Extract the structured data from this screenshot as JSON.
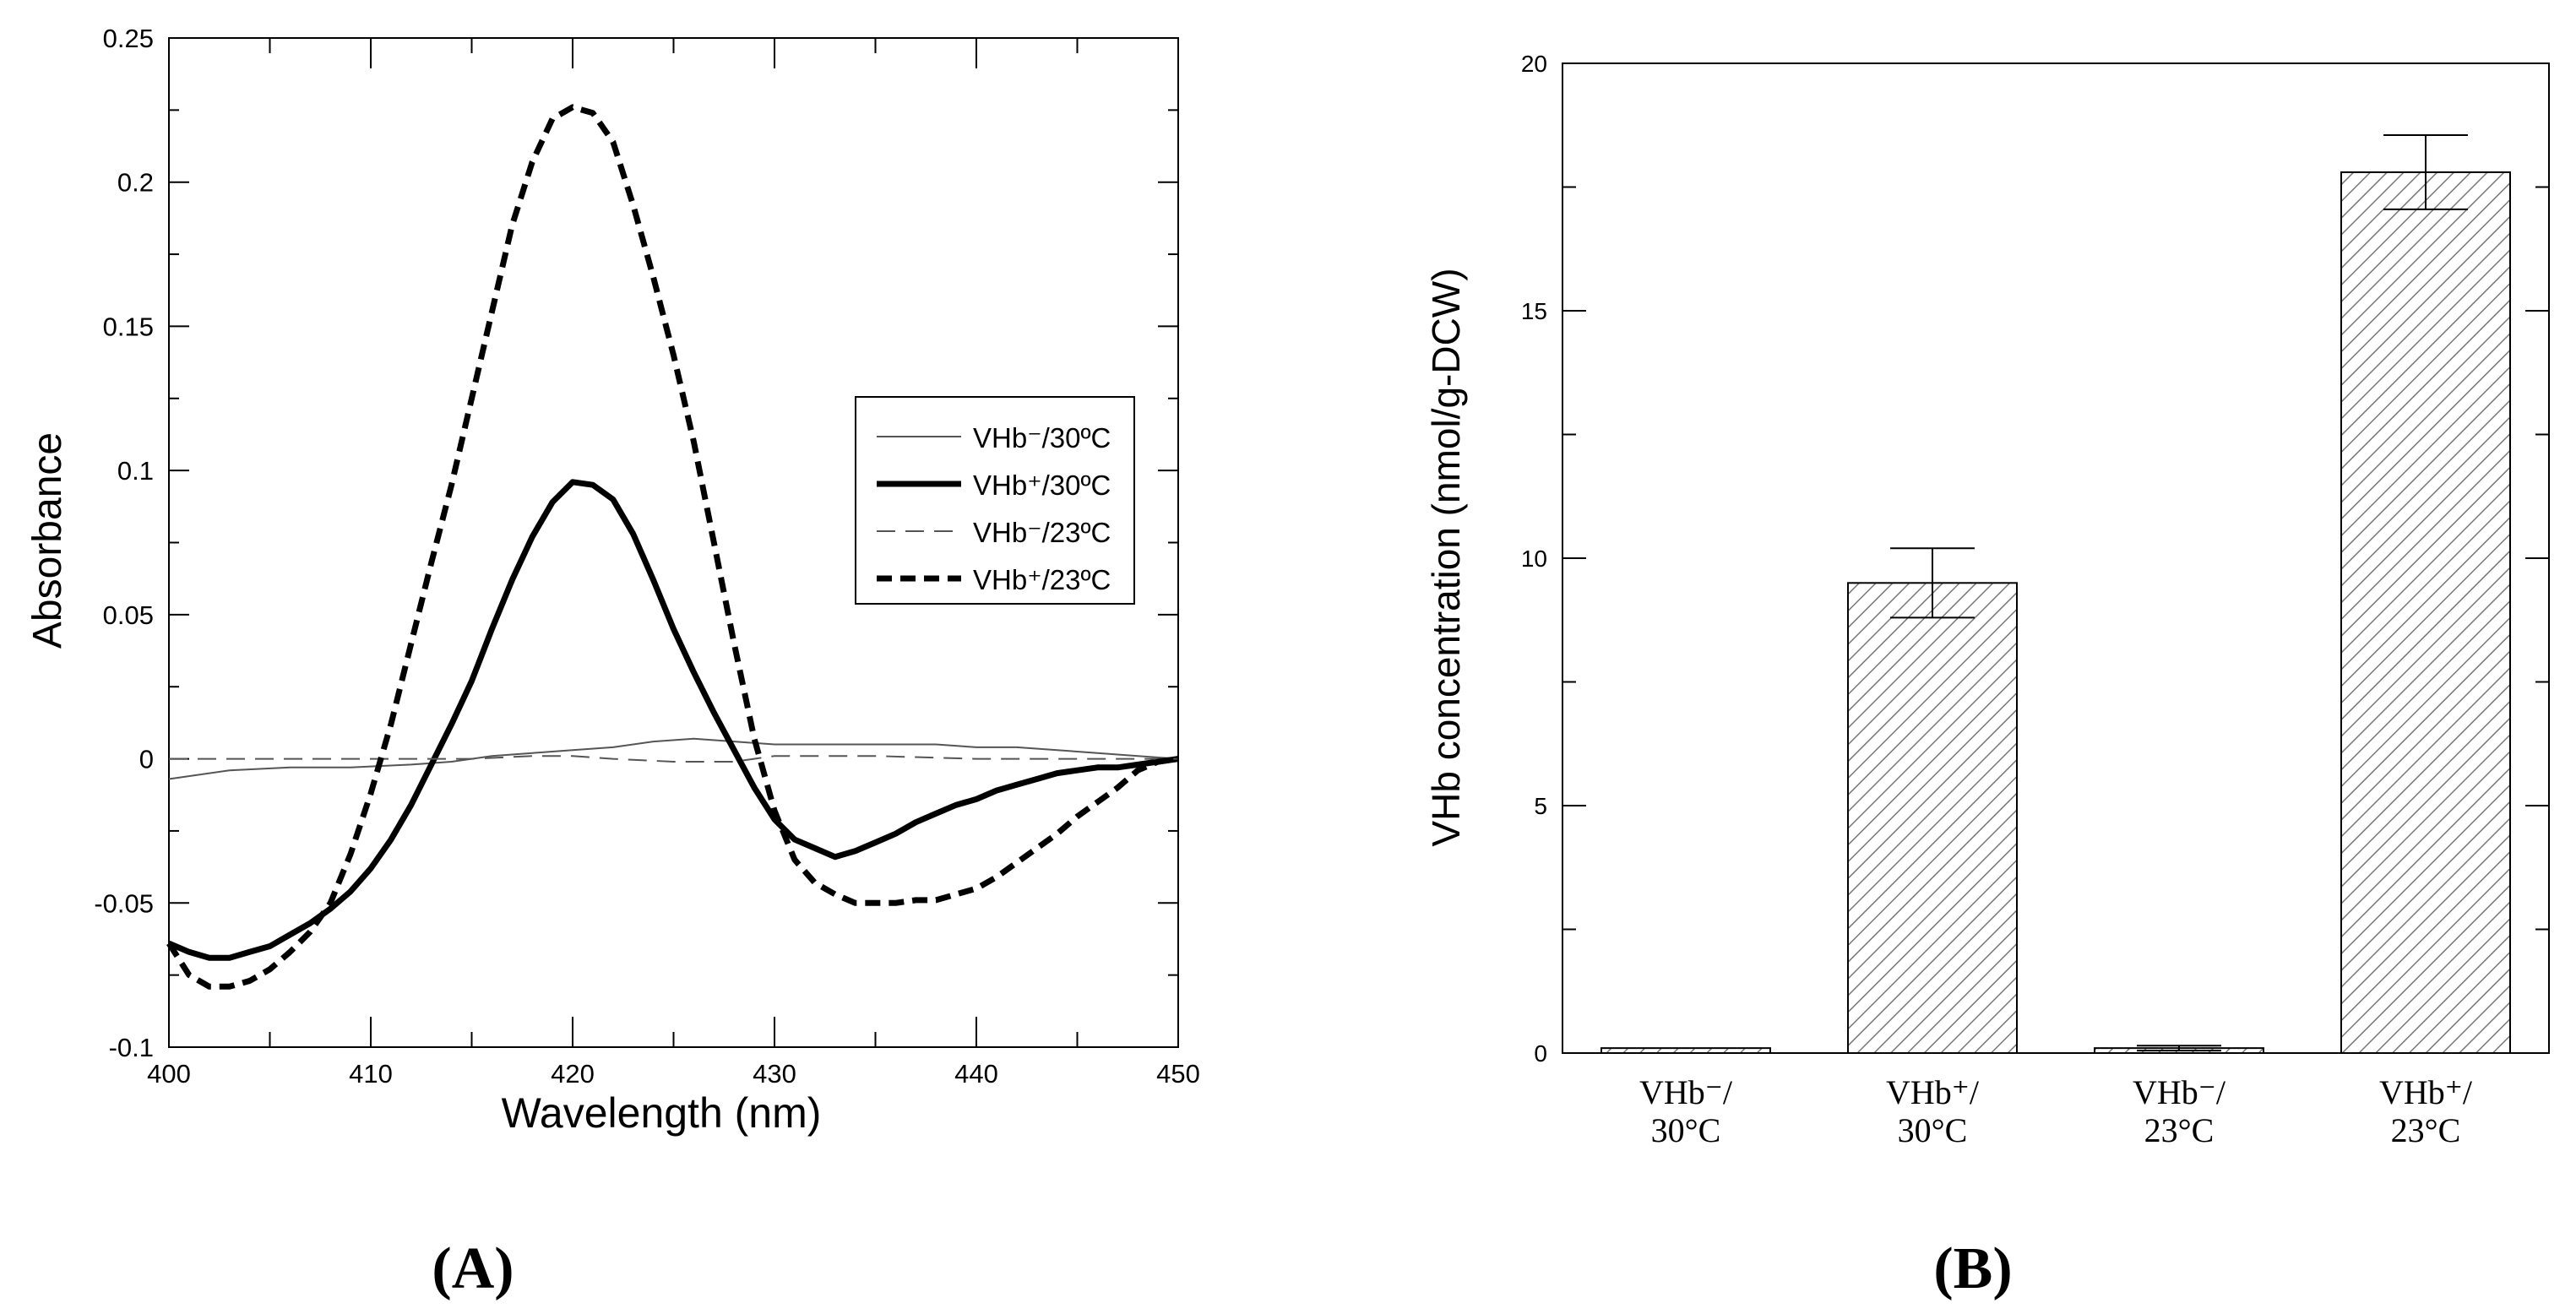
{
  "colors": {
    "axis": "#000000",
    "thin_line": "#555555",
    "bar_fill": "#ffffff",
    "hatch": "#777777"
  },
  "chart_data": [
    {
      "type": "line",
      "panel_label": "(A)",
      "xlabel": "Wavelength (nm)",
      "ylabel": "Absorbance",
      "xlim": [
        400,
        450
      ],
      "ylim": [
        -0.1,
        0.25
      ],
      "x_ticks": [
        "400",
        "410",
        "420",
        "430",
        "440",
        "450"
      ],
      "y_ticks": [
        "-0.1",
        "-0.05",
        "0",
        "0.05",
        "0.1",
        "0.15",
        "0.2",
        "0.25"
      ],
      "grid": false,
      "legend_position": "right",
      "series": [
        {
          "name": "VHb⁻/30ºC",
          "style": "thin-solid",
          "x": [
            400,
            403,
            406,
            409,
            412,
            414,
            416,
            418,
            420,
            422,
            424,
            426,
            428,
            430,
            432,
            434,
            436,
            438,
            440,
            442,
            444,
            446,
            448,
            450
          ],
          "y": [
            -0.007,
            -0.004,
            -0.003,
            -0.003,
            -0.002,
            -0.001,
            0.001,
            0.002,
            0.003,
            0.004,
            0.006,
            0.007,
            0.006,
            0.005,
            0.005,
            0.005,
            0.005,
            0.005,
            0.004,
            0.004,
            0.003,
            0.002,
            0.001,
            0.0
          ]
        },
        {
          "name": "VHb⁺/30ºC",
          "style": "thick-solid",
          "x": [
            400,
            401,
            402,
            403,
            404,
            405,
            406,
            407,
            408,
            409,
            410,
            411,
            412,
            413,
            414,
            415,
            416,
            417,
            418,
            419,
            420,
            421,
            422,
            423,
            424,
            425,
            426,
            427,
            428,
            429,
            430,
            431,
            432,
            433,
            434,
            435,
            436,
            437,
            438,
            439,
            440,
            441,
            442,
            443,
            444,
            445,
            446,
            447,
            448,
            449,
            450
          ],
          "y": [
            -0.064,
            -0.067,
            -0.069,
            -0.069,
            -0.067,
            -0.065,
            -0.061,
            -0.057,
            -0.052,
            -0.046,
            -0.038,
            -0.028,
            -0.016,
            -0.002,
            0.012,
            0.027,
            0.045,
            0.062,
            0.077,
            0.089,
            0.096,
            0.095,
            0.09,
            0.078,
            0.062,
            0.045,
            0.03,
            0.016,
            0.003,
            -0.01,
            -0.021,
            -0.028,
            -0.031,
            -0.034,
            -0.032,
            -0.029,
            -0.026,
            -0.022,
            -0.019,
            -0.016,
            -0.014,
            -0.011,
            -0.009,
            -0.007,
            -0.005,
            -0.004,
            -0.003,
            -0.003,
            -0.002,
            -0.001,
            0.0
          ]
        },
        {
          "name": "VHb⁻/23ºC",
          "style": "thin-dashed",
          "x": [
            400,
            405,
            410,
            415,
            418,
            420,
            422,
            425,
            428,
            430,
            435,
            440,
            445,
            450
          ],
          "y": [
            0.0,
            0.0,
            0.0,
            0.0,
            0.001,
            0.001,
            0.0,
            -0.001,
            -0.001,
            0.001,
            0.001,
            0.0,
            0.0,
            0.0
          ]
        },
        {
          "name": "VHb⁺/23ºC",
          "style": "thick-dashed",
          "x": [
            400,
            401,
            402,
            403,
            404,
            405,
            406,
            407,
            408,
            409,
            410,
            411,
            412,
            413,
            414,
            415,
            416,
            417,
            418,
            419,
            420,
            421,
            422,
            423,
            424,
            425,
            426,
            427,
            428,
            429,
            430,
            431,
            432,
            433,
            434,
            435,
            436,
            437,
            438,
            439,
            440,
            441,
            442,
            443,
            444,
            445,
            446,
            447,
            448,
            449,
            450
          ],
          "y": [
            -0.064,
            -0.075,
            -0.079,
            -0.079,
            -0.077,
            -0.073,
            -0.067,
            -0.06,
            -0.05,
            -0.033,
            -0.012,
            0.012,
            0.04,
            0.068,
            0.095,
            0.125,
            0.155,
            0.185,
            0.207,
            0.222,
            0.226,
            0.224,
            0.214,
            0.192,
            0.167,
            0.14,
            0.11,
            0.075,
            0.04,
            0.007,
            -0.018,
            -0.035,
            -0.043,
            -0.047,
            -0.05,
            -0.05,
            -0.05,
            -0.049,
            -0.049,
            -0.047,
            -0.045,
            -0.041,
            -0.036,
            -0.031,
            -0.026,
            -0.02,
            -0.015,
            -0.01,
            -0.004,
            -0.001,
            0.0
          ]
        }
      ]
    },
    {
      "type": "bar",
      "panel_label": "(B)",
      "xlabel": "",
      "ylabel": "VHb concentration (nmol/g-DCW)",
      "ylim": [
        0,
        20
      ],
      "y_ticks": [
        "0",
        "5",
        "10",
        "15",
        "20"
      ],
      "y_minor_step": 2.5,
      "grid": false,
      "bar_pattern": "diagonal-hatch",
      "categories": [
        {
          "top": "VHb⁻/",
          "bottom": "30°C"
        },
        {
          "top": "VHb⁺/",
          "bottom": "30°C"
        },
        {
          "top": "VHb⁻/",
          "bottom": "23°C"
        },
        {
          "top": "VHb⁺/",
          "bottom": "23°C"
        }
      ],
      "values": [
        0.1,
        9.5,
        0.1,
        17.8
      ],
      "errors": [
        0.0,
        0.7,
        0.05,
        0.75
      ]
    }
  ]
}
